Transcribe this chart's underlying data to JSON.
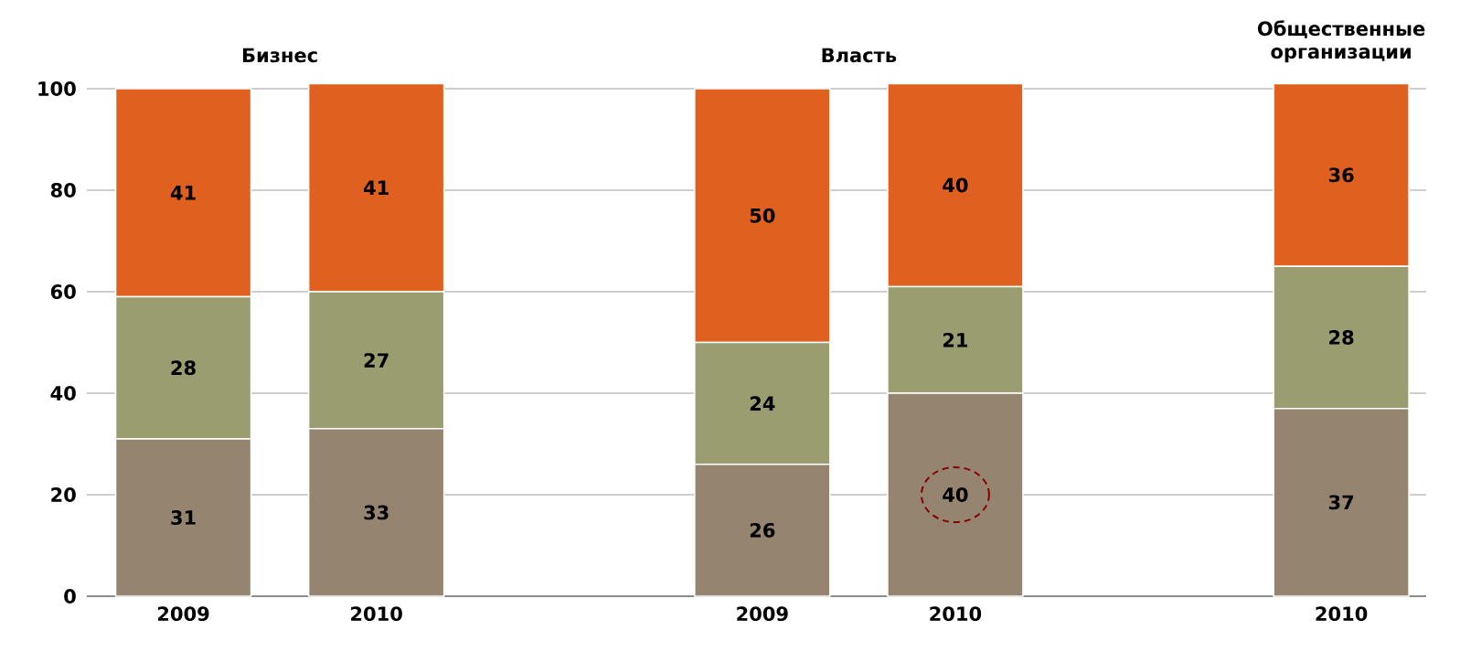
{
  "chart_data": {
    "type": "bar",
    "stacked": true,
    "data_labels": true,
    "grid": "y",
    "categories": [
      "2009",
      "2010",
      null,
      "2009",
      "2010",
      null,
      "2010"
    ],
    "series": [
      {
        "color": "#948470",
        "values": [
          31,
          33,
          null,
          26,
          40,
          null,
          37
        ]
      },
      {
        "color": "#9a9d6f",
        "values": [
          28,
          27,
          null,
          24,
          21,
          null,
          28
        ]
      },
      {
        "color": "#e06020",
        "values": [
          41,
          41,
          null,
          50,
          40,
          null,
          36
        ]
      }
    ],
    "ylim": [
      0,
      101
    ],
    "yticks": [
      0,
      20,
      40,
      60,
      80,
      100
    ],
    "annotations": [
      "Бизнес",
      "Власть",
      "Общественные организации"
    ]
  }
}
